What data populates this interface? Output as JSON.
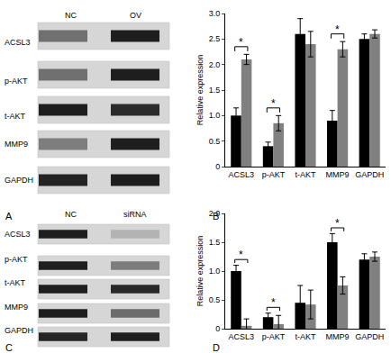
{
  "chart_data": [
    {
      "type": "bar",
      "ylabel": "Relative expression",
      "categories": [
        "ACSL3",
        "p-AKT",
        "t-AKT",
        "MMP9",
        "GAPDH"
      ],
      "series": [
        {
          "color": "#000000",
          "values": [
            1.0,
            0.4,
            2.6,
            0.9,
            2.5
          ],
          "error": [
            0.15,
            0.08,
            0.3,
            0.2,
            0.1
          ]
        },
        {
          "color": "#808080",
          "values": [
            2.1,
            0.85,
            2.4,
            2.3,
            2.6
          ],
          "error": [
            0.1,
            0.15,
            0.25,
            0.15,
            0.08
          ]
        }
      ],
      "ylim": [
        0,
        3
      ],
      "yticks": [
        0,
        0.5,
        {
          "value": 1,
          "label": "1.0"
        },
        1.5,
        {
          "value": 2,
          "label": "2.0"
        },
        2.5,
        {
          "value": 3,
          "label": "3.0"
        }
      ],
      "grid": false,
      "annotations": [
        {
          "text": "B"
        },
        {
          "text": "*",
          "category": "ACSL3"
        },
        {
          "text": "*",
          "category": "p-AKT"
        },
        {
          "text": "*",
          "category": "MMP9"
        }
      ]
    },
    {
      "type": "bar",
      "ylabel": "Relative expression",
      "categories": [
        "ACSL3",
        "p-AKT",
        "t-AKT",
        "MMP9",
        "GAPDH"
      ],
      "series": [
        {
          "color": "#000000",
          "values": [
            1.0,
            0.2,
            0.45,
            1.5,
            1.2
          ],
          "error": [
            0.1,
            0.07,
            0.3,
            0.15,
            0.1
          ]
        },
        {
          "color": "#808080",
          "values": [
            0.05,
            0.08,
            0.42,
            0.75,
            1.25
          ],
          "error": [
            0.12,
            0.15,
            0.25,
            0.15,
            0.08
          ]
        }
      ],
      "ylim": [
        0,
        2
      ],
      "yticks": [
        0,
        0.5,
        {
          "value": 1,
          "label": "1.0"
        },
        1.5,
        {
          "value": 2,
          "label": "2.0"
        }
      ],
      "grid": false,
      "annotations": [
        {
          "text": "D"
        },
        {
          "text": "*",
          "category": "ACSL3"
        },
        {
          "text": "*",
          "category": "p-AKT"
        },
        {
          "text": "*",
          "category": "MMP9"
        }
      ]
    }
  ],
  "blots": [
    {
      "label": "A",
      "lanes": [
        "NC",
        "OV"
      ],
      "rows": [
        "ACSL3",
        "p-AKT",
        "t-AKT",
        "MMP9",
        "GAPDH"
      ]
    },
    {
      "label": "C",
      "lanes": [
        "NC",
        "siRNA"
      ],
      "rows": [
        "ACSL3",
        "p-AKT",
        "t-AKT",
        "MMP9",
        "GAPDH"
      ]
    }
  ]
}
